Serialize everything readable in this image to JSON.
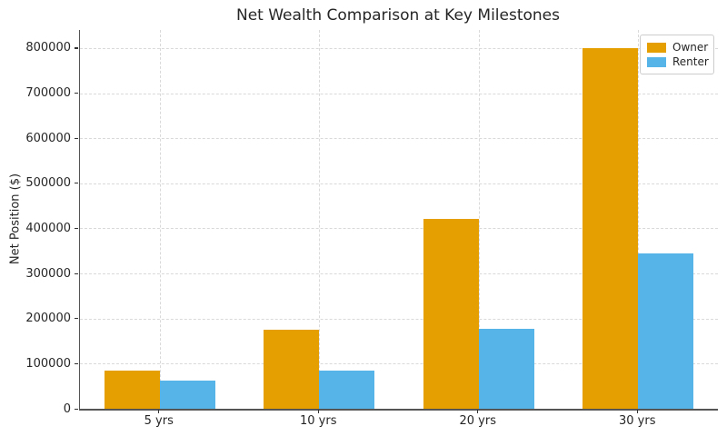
{
  "chart_data": {
    "type": "bar",
    "title": "Net Wealth Comparison at Key Milestones",
    "xlabel": "",
    "ylabel": "Net Position ($)",
    "categories": [
      "5 yrs",
      "10 yrs",
      "20 yrs",
      "30 yrs"
    ],
    "series": [
      {
        "name": "Owner",
        "color": "#E69F00",
        "values": [
          85000,
          175000,
          421000,
          800000
        ]
      },
      {
        "name": "Renter",
        "color": "#56B4E9",
        "values": [
          62000,
          84000,
          177000,
          344000
        ]
      }
    ],
    "yticks": [
      0,
      100000,
      200000,
      300000,
      400000,
      500000,
      600000,
      700000,
      800000
    ],
    "ylim": [
      0,
      840000
    ],
    "grid": "dashed-horizontal-and-vertical",
    "legend_position": "upper-right",
    "colors": {
      "axis": "#555555",
      "grid": "#d9d9d9",
      "text": "#262626",
      "background": "#ffffff"
    }
  }
}
